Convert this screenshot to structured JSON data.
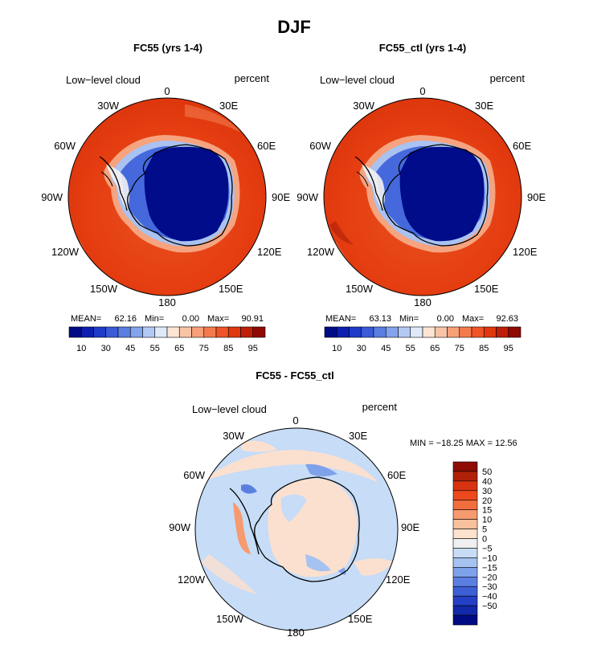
{
  "page_title": "DJF",
  "colors": {
    "antarctic_deep": "#000c8a",
    "ocean_red": "#e43a0e",
    "land_outline": "#000000",
    "diff_neg_light": "#c6dcf7",
    "diff_pos_light": "#fbe0cf"
  },
  "panels": [
    {
      "title": "FC55 (yrs 1-4)",
      "variable": "Low−level cloud",
      "units": "percent",
      "stats": {
        "mean_label": "MEAN=",
        "mean": "62.16",
        "min_label": "Min=",
        "min": "0.00",
        "max_label": "Max=",
        "max": "90.91"
      }
    },
    {
      "title": "FC55_ctl (yrs 1-4)",
      "variable": "Low−level cloud",
      "units": "percent",
      "stats": {
        "mean_label": "MEAN=",
        "mean": "63.13",
        "min_label": "Min=",
        "min": "0.00",
        "max_label": "Max=",
        "max": "92.63"
      }
    }
  ],
  "longitude_labels": [
    "0",
    "30E",
    "60E",
    "90E",
    "120E",
    "150E",
    "180",
    "150W",
    "120W",
    "90W",
    "60W",
    "30W"
  ],
  "field_colorbar": {
    "colors": [
      "#000b85",
      "#0c1fae",
      "#1f3bc8",
      "#3a5ad8",
      "#5a7ee2",
      "#83a3ec",
      "#b2c9f4",
      "#dfe9fa",
      "#fde5d3",
      "#f9c4a6",
      "#f7a078",
      "#f47a4d",
      "#ef5428",
      "#e0370f",
      "#bf1f08",
      "#8f0a04"
    ],
    "labels": [
      "10",
      "30",
      "45",
      "55",
      "65",
      "75",
      "85",
      "95"
    ]
  },
  "difference_panel": {
    "title": "FC55 - FC55_ctl",
    "variable": "Low−level cloud",
    "units": "percent",
    "minmax": "MIN = −18.25 MAX =   12.56",
    "colorbar": {
      "colors": [
        "#8e0c03",
        "#b1200a",
        "#d83310",
        "#ec4a1d",
        "#f26e3f",
        "#f69a6f",
        "#f9c09e",
        "#fde2cd",
        "#f0f0f0",
        "#c9dcf5",
        "#a6c2f0",
        "#7fa1e9",
        "#5b7fe1",
        "#3d5fd6",
        "#2440c5",
        "#1227a9",
        "#000a82"
      ],
      "labels": [
        "50",
        "40",
        "30",
        "20",
        "15",
        "10",
        "5",
        "0",
        "−5",
        "−10",
        "−15",
        "−20",
        "−30",
        "−40",
        "−50"
      ]
    }
  }
}
